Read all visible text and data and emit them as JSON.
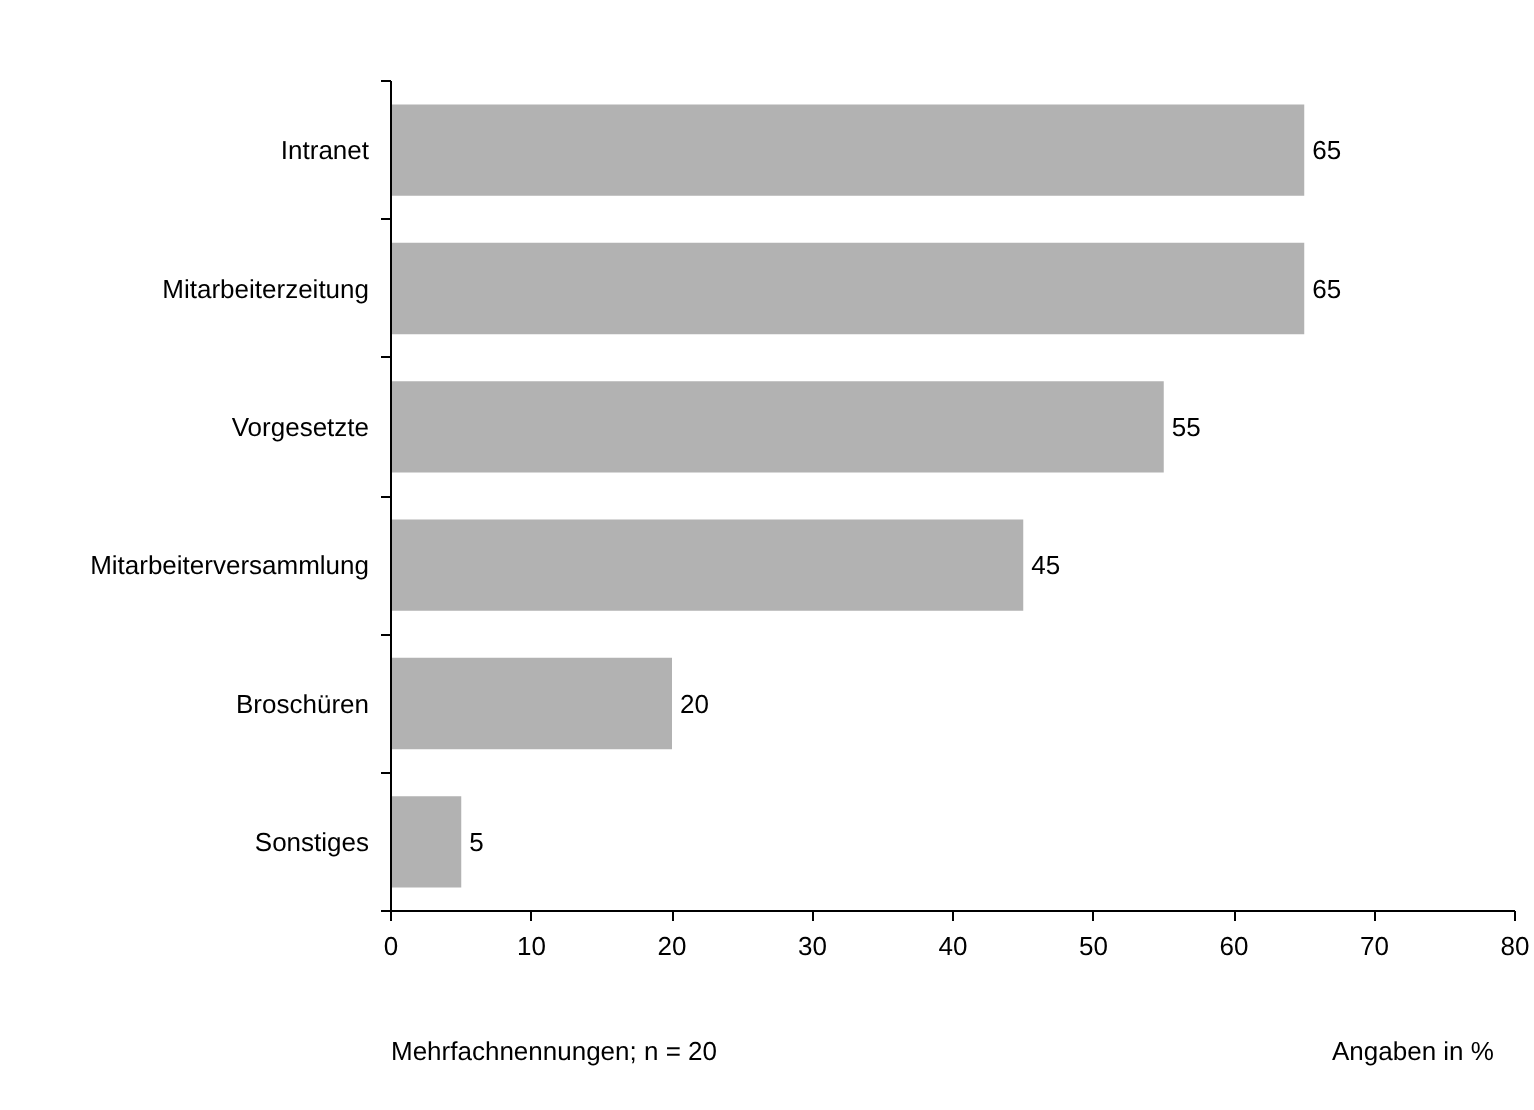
{
  "chart_data": {
    "type": "bar",
    "orientation": "horizontal",
    "categories": [
      "Intranet",
      "Mitarbeiterzeitung",
      "Vorgesetzte",
      "Mitarbeiterversammlung",
      "Broschüren",
      "Sonstiges"
    ],
    "values": [
      65,
      65,
      55,
      45,
      20,
      5
    ],
    "color": "#b2b2b2",
    "xlim": [
      0,
      80
    ],
    "xticks": [
      0,
      10,
      20,
      30,
      40,
      50,
      60,
      70,
      80
    ],
    "data_labels": true,
    "grid": false,
    "annotations": [
      "Mehrfachnennungen; n = 20",
      "Angaben in %"
    ]
  }
}
